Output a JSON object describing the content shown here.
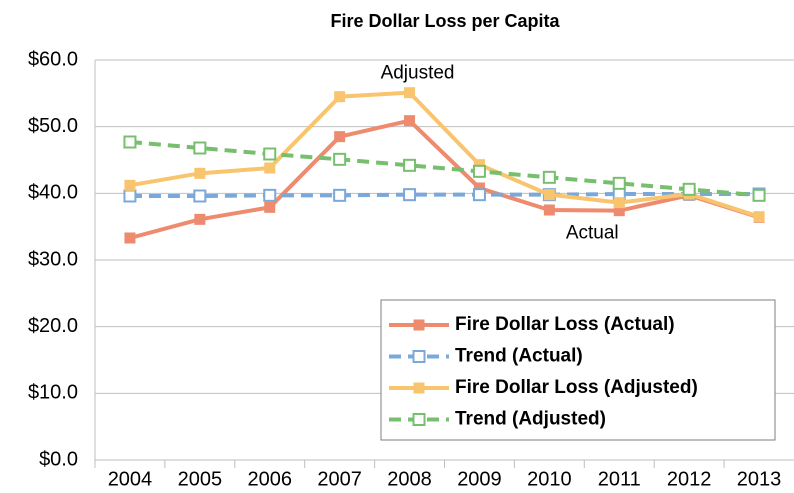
{
  "chart_data": {
    "type": "line",
    "title": "Fire Dollar Loss per Capita",
    "categories": [
      "2004",
      "2005",
      "2006",
      "2007",
      "2008",
      "2009",
      "2010",
      "2011",
      "2012",
      "2013"
    ],
    "series": [
      {
        "name": "Fire Dollar Loss (Actual)",
        "color": "#ee8a6e",
        "line_style": "solid",
        "marker": "square",
        "values": [
          33.3,
          36.1,
          37.9,
          48.5,
          50.9,
          40.8,
          37.5,
          37.4,
          39.7,
          36.4
        ]
      },
      {
        "name": "Trend (Actual)",
        "color": "#7ba8d8",
        "line_style": "dashed",
        "marker": "hollow-square",
        "values": [
          39.6,
          39.6,
          39.7,
          39.7,
          39.8,
          39.8,
          39.8,
          39.9,
          39.9,
          39.9
        ]
      },
      {
        "name": "Fire Dollar Loss (Adjusted)",
        "color": "#f9c46e",
        "line_style": "solid",
        "marker": "square",
        "values": [
          41.2,
          43.0,
          43.8,
          54.5,
          55.1,
          44.3,
          39.8,
          38.6,
          39.9,
          36.5
        ]
      },
      {
        "name": "Trend (Adjusted)",
        "color": "#77bf6e",
        "line_style": "dashed",
        "marker": "hollow-square",
        "values": [
          47.7,
          46.8,
          45.9,
          45.1,
          44.2,
          43.3,
          42.4,
          41.5,
          40.6,
          39.7
        ]
      }
    ],
    "annotations": [
      {
        "text": "Adjusted",
        "x": "2008",
        "y": 58
      },
      {
        "text": "Actual",
        "x": "2011",
        "y": 34
      }
    ],
    "ylim": [
      0,
      60
    ],
    "yticks": [
      {
        "value": 0,
        "label": "$0.0"
      },
      {
        "value": 10,
        "label": "$10.0"
      },
      {
        "value": 20,
        "label": "$20.0"
      },
      {
        "value": 30,
        "label": "$30.0"
      },
      {
        "value": 40,
        "label": "$40.0"
      },
      {
        "value": 50,
        "label": "$50.0"
      },
      {
        "value": 60,
        "label": "$60.0"
      }
    ],
    "grid": true,
    "legend": "lower right"
  }
}
